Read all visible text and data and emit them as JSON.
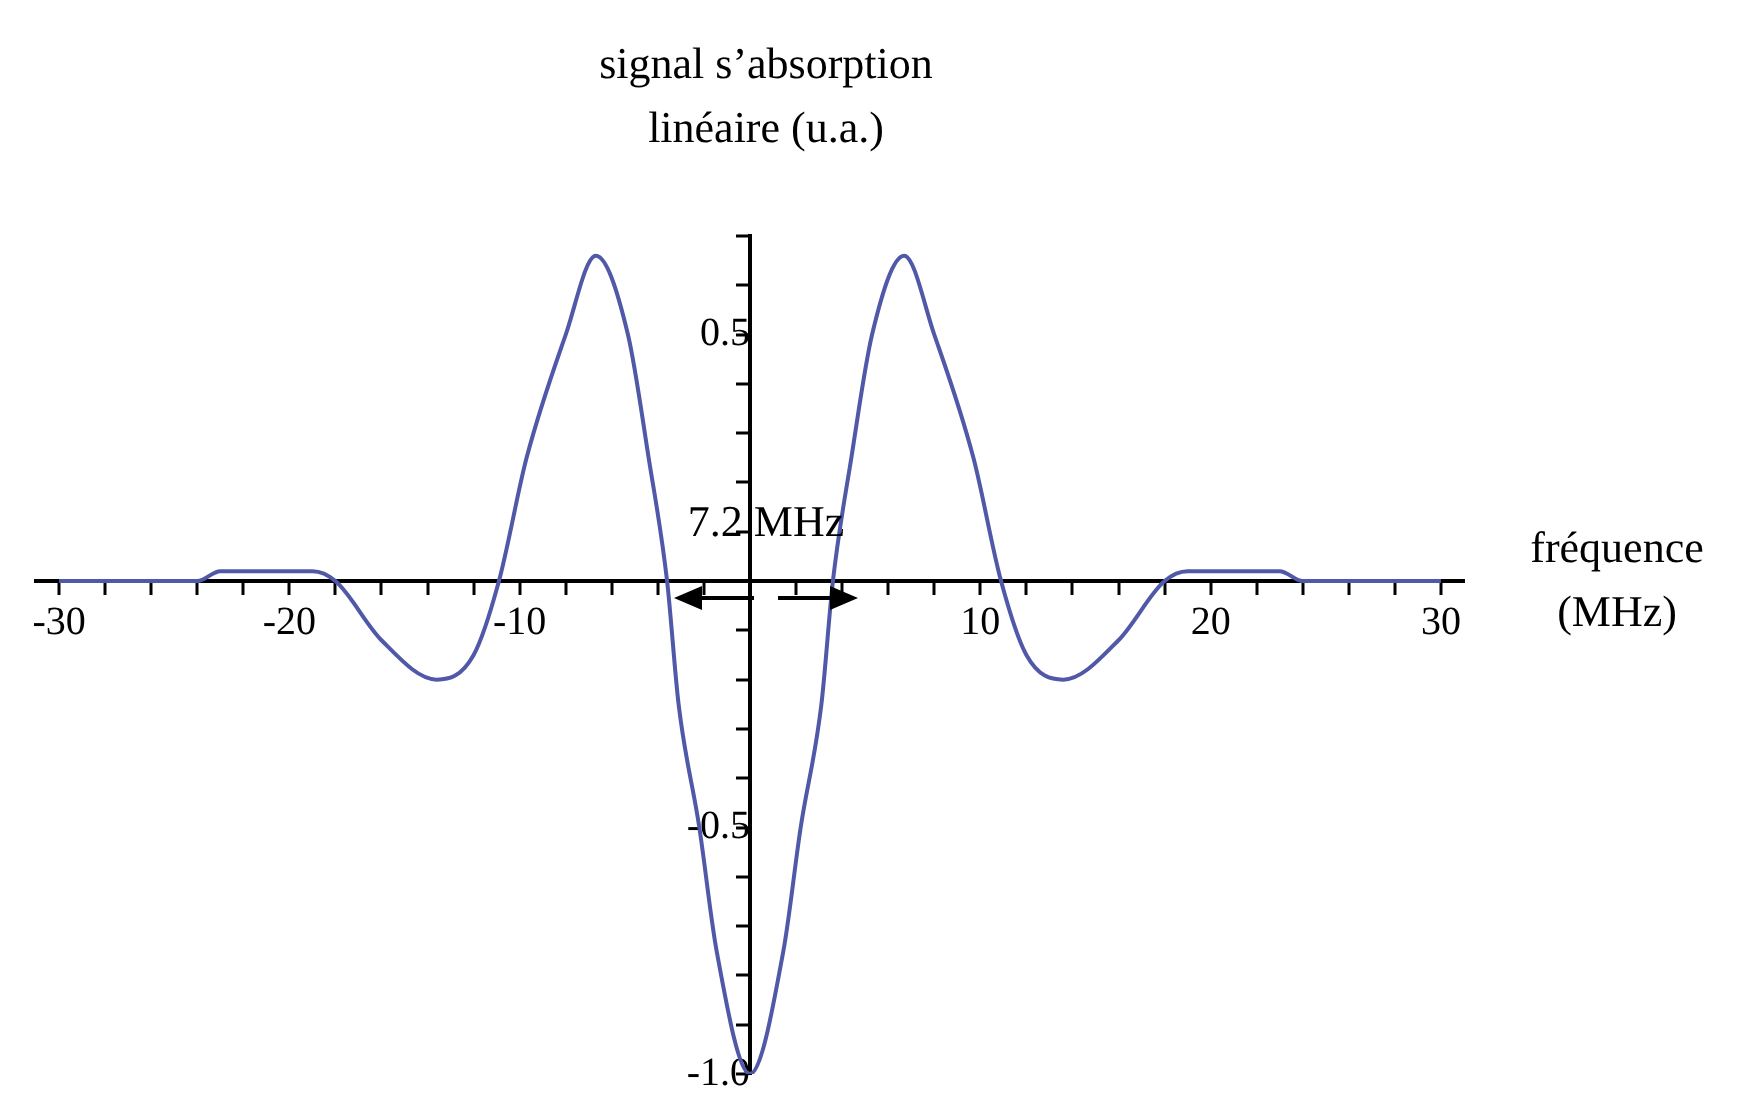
{
  "chart_data": {
    "type": "line",
    "ylabel": "signal s’absorption linéaire (u.a.)",
    "xlabel": "fréquence (MHz)",
    "annotations": [
      "7.2 MHz"
    ],
    "x": [
      -30,
      -24,
      -23,
      -19,
      -18,
      -16,
      -13.6,
      -12,
      -10.9,
      -9.7,
      -8,
      -6.7,
      -5.3,
      -4.4,
      -3.6,
      -3.1,
      -2.2,
      -1.45,
      0,
      1.45,
      2.2,
      3.1,
      3.6,
      4.4,
      5.3,
      6.7,
      8,
      9.7,
      10.9,
      12,
      13.6,
      16,
      18,
      19,
      23,
      24,
      30
    ],
    "series": [
      {
        "color": "#5058a8",
        "values": [
          0,
          0,
          0.02,
          0.02,
          0,
          -0.12,
          -0.2,
          -0.15,
          0,
          0.25,
          0.5,
          0.66,
          0.5,
          0.25,
          0,
          -0.25,
          -0.5,
          -0.75,
          -1.0,
          -0.75,
          -0.5,
          -0.25,
          0,
          0.25,
          0.5,
          0.66,
          0.5,
          0.25,
          0,
          -0.15,
          -0.2,
          -0.12,
          0,
          0.02,
          0.02,
          0,
          0
        ]
      }
    ],
    "xlim": [
      -31,
      31
    ],
    "ylim": [
      -1.0,
      0.7
    ],
    "xticks": [
      -30,
      {
        "value": -28,
        "label": null
      },
      {
        "value": -26,
        "label": null
      },
      {
        "value": -24,
        "label": null
      },
      {
        "value": -22,
        "label": null
      },
      -20,
      {
        "value": -18,
        "label": null
      },
      {
        "value": -16,
        "label": null
      },
      {
        "value": -14,
        "label": null
      },
      {
        "value": -12,
        "label": null
      },
      -10,
      {
        "value": -8,
        "label": null
      },
      {
        "value": -6,
        "label": null
      },
      {
        "value": -4,
        "label": null
      },
      {
        "value": -2,
        "label": null
      },
      {
        "value": 2,
        "label": null
      },
      {
        "value": 4,
        "label": null
      },
      {
        "value": 6,
        "label": null
      },
      {
        "value": 8,
        "label": null
      },
      10,
      {
        "value": 12,
        "label": null
      },
      {
        "value": 14,
        "label": null
      },
      {
        "value": 16,
        "label": null
      },
      {
        "value": 18,
        "label": null
      },
      20,
      {
        "value": 22,
        "label": null
      },
      {
        "value": 24,
        "label": null
      },
      {
        "value": 26,
        "label": null
      },
      {
        "value": 28,
        "label": null
      },
      30
    ],
    "yticks": [
      {
        "value": -1.0,
        "label": "-1.0"
      },
      {
        "value": -0.9,
        "label": null
      },
      {
        "value": -0.8,
        "label": null
      },
      {
        "value": -0.7,
        "label": null
      },
      {
        "value": -0.6,
        "label": null
      },
      -0.5,
      {
        "value": -0.4,
        "label": null
      },
      {
        "value": -0.3,
        "label": null
      },
      {
        "value": -0.2,
        "label": null
      },
      {
        "value": -0.1,
        "label": null
      },
      {
        "value": 0.1,
        "label": null
      },
      {
        "value": 0.2,
        "label": null
      },
      {
        "value": 0.3,
        "label": null
      },
      {
        "value": 0.4,
        "label": null
      },
      0.5,
      {
        "value": 0.6,
        "label": null
      },
      {
        "value": 0.7,
        "label": null
      }
    ],
    "marker": "none",
    "line_style": "solid",
    "legend": false
  }
}
